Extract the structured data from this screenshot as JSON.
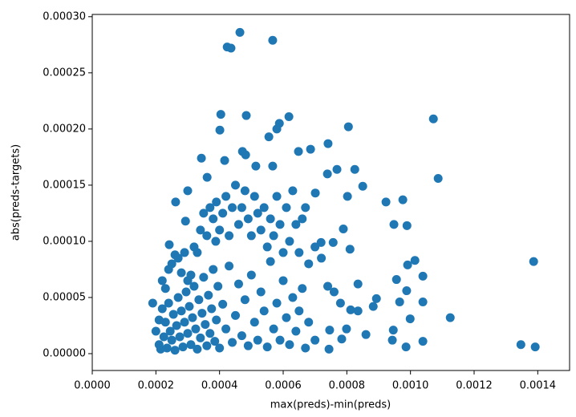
{
  "chart_data": {
    "type": "scatter",
    "color": "#1f77b4",
    "x_label": "max(preds)-min(preds)",
    "y_label": "abs(preds-targets)",
    "xlim": [
      0,
      0.0015
    ],
    "ylim": [
      -1.5e-05,
      0.000302
    ],
    "xticks": [
      {
        "value": 0,
        "label": "0.0000"
      },
      {
        "value": 0.0002,
        "label": "0.0002"
      },
      {
        "value": 0.0004,
        "label": "0.0004"
      },
      {
        "value": 0.0006,
        "label": "0.0006"
      },
      {
        "value": 0.0008,
        "label": "0.0008"
      },
      {
        "value": 0.001,
        "label": "0.0010"
      },
      {
        "value": 0.0012,
        "label": "0.0012"
      },
      {
        "value": 0.0014,
        "label": "0.0014"
      }
    ],
    "yticks": [
      {
        "value": 0,
        "label": "0.00000"
      },
      {
        "value": 5e-05,
        "label": "0.00005"
      },
      {
        "value": 0.0001,
        "label": "0.00010"
      },
      {
        "value": 0.00015,
        "label": "0.00015"
      },
      {
        "value": 0.0002,
        "label": "0.00020"
      },
      {
        "value": 0.00025,
        "label": "0.00025"
      },
      {
        "value": 0.0003,
        "label": "0.00030"
      }
    ],
    "x": [
      0.000464,
      0.000567,
      0.000424,
      0.000436,
      0.000404,
      0.000484,
      0.000618,
      0.001072,
      0.000805,
      0.000401,
      0.000588,
      0.00058,
      0.000555,
      0.000741,
      0.000686,
      0.000648,
      0.000472,
      0.000482,
      0.000343,
      0.000416,
      0.001087,
      0.000769,
      0.000825,
      0.000514,
      0.000567,
      0.00085,
      0.000923,
      0.000976,
      0.000948,
      0.000989,
      0.000802,
      0.000739,
      0.000701,
      0.000262,
      0.0003,
      0.000361,
      0.000293,
      0.000242,
      0.000388,
      0.001387,
      0.001014,
      0.000991,
      0.001039,
      0.000988,
      0.000956,
      0.000835,
      0.00081,
      0.000719,
      0.000757,
      0.000789,
      0.001125,
      0.001347,
      0.001392,
      0.001039,
      0.001039,
      0.000986,
      0.000943,
      0.000946,
      0.000966,
      0.000999,
      0.000893,
      0.000812,
      0.000835,
      0.000883,
      0.00086,
      0.000799,
      0.000784,
      0.000746,
      0.000744,
      0.00019,
      0.00021,
      0.00022,
      0.00023,
      0.00024,
      0.00025,
      0.00026,
      0.00027,
      0.00028,
      0.00029,
      0.0003,
      0.00031,
      0.00032,
      0.00033,
      0.00034,
      0.00035,
      0.00036,
      0.00037,
      0.00038,
      0.00039,
      0.0004,
      0.00041,
      0.00042,
      0.00043,
      0.00044,
      0.00045,
      0.00046,
      0.00047,
      0.00048,
      0.00049,
      0.0005,
      0.00051,
      0.00052,
      0.00053,
      0.00054,
      0.00055,
      0.00056,
      0.00057,
      0.00058,
      0.00059,
      0.0006,
      0.00061,
      0.00062,
      0.00063,
      0.00064,
      0.00065,
      0.00066,
      0.00067,
      0.00068,
      0.0007,
      0.00072,
      0.00074,
      0.00076,
      0.00078,
      0.0002,
      0.00021,
      0.000215,
      0.00022,
      0.000225,
      0.00023,
      0.000235,
      0.00024,
      0.000245,
      0.00025,
      0.000255,
      0.00026,
      0.000265,
      0.00027,
      0.000275,
      0.00028,
      0.000285,
      0.00029,
      0.000295,
      0.0003,
      0.000305,
      0.00031,
      0.000315,
      0.00032,
      0.000325,
      0.00033,
      0.000335,
      0.00034,
      0.000345,
      0.00035,
      0.000355,
      0.00036,
      0.000365,
      0.00037,
      0.000375,
      0.00038,
      0.000385,
      0.00039,
      0.000395,
      0.0004,
      0.00041,
      0.00042,
      0.00043,
      0.00044,
      0.00045,
      0.00046,
      0.00047,
      0.00048,
      0.00049,
      0.0005,
      0.00051,
      0.00052,
      0.00053,
      0.00054,
      0.00055,
      0.00056,
      0.00057,
      0.00058,
      0.00059,
      0.0006,
      0.00061,
      0.00062,
      0.00063,
      0.00064,
      0.00065,
      0.00066,
      0.00067,
      0.00068,
      0.0007
    ],
    "values": [
      0.000286,
      0.000279,
      0.000273,
      0.000272,
      0.000213,
      0.000212,
      0.000211,
      0.000209,
      0.000202,
      0.000199,
      0.000205,
      0.0002,
      0.000193,
      0.000187,
      0.000182,
      0.00018,
      0.00018,
      0.000177,
      0.000174,
      0.000172,
      0.000156,
      0.000164,
      0.000164,
      0.000167,
      0.000167,
      0.000149,
      0.000135,
      0.000137,
      0.000115,
      0.000114,
      0.00014,
      0.00016,
      0.000143,
      0.000135,
      0.000145,
      0.000157,
      0.000118,
      9.7e-05,
      0.0001,
      8.2e-05,
      8.3e-05,
      7.9e-05,
      6.9e-05,
      5.6e-05,
      6.6e-05,
      6.2e-05,
      9.3e-05,
      9.9e-05,
      9.9e-05,
      0.000111,
      3.2e-05,
      8e-06,
      6e-06,
      4.6e-05,
      1.1e-05,
      6e-06,
      1.2e-05,
      2.1e-05,
      4.6e-05,
      3.1e-05,
      4.9e-05,
      3.9e-05,
      3.8e-05,
      4.2e-05,
      1.7e-05,
      2.2e-05,
      1.3e-05,
      2.1e-05,
      4e-06,
      4.5e-05,
      3e-05,
      6.5e-05,
      5.8e-05,
      7.5e-05,
      8e-05,
      8.8e-05,
      8.5e-05,
      7.2e-05,
      9e-05,
      6.5e-05,
      7e-05,
      9.5e-05,
      9e-05,
      0.00011,
      0.000125,
      0.000105,
      0.00013,
      0.00012,
      0.000135,
      0.00011,
      0.000125,
      0.00014,
      0.000105,
      0.00013,
      0.00015,
      0.000115,
      0.00013,
      0.000145,
      0.00012,
      0.000105,
      0.00014,
      0.000125,
      0.00011,
      0.00013,
      9.5e-05,
      0.00012,
      0.000105,
      0.00014,
      0.000115,
      9e-05,
      0.00013,
      0.0001,
      0.000145,
      0.000115,
      9e-05,
      0.00012,
      0.00013,
      8e-05,
      9.5e-05,
      8.5e-05,
      6e-05,
      5.5e-05,
      4.5e-05,
      2e-05,
      8e-06,
      4e-06,
      4e-05,
      1.5e-05,
      2.8e-05,
      5e-06,
      4.5e-05,
      2e-05,
      1.2e-05,
      3.5e-05,
      3e-06,
      2.5e-05,
      5e-05,
      1.5e-05,
      3.8e-05,
      6e-06,
      2.8e-05,
      5.5e-05,
      1.8e-05,
      4.2e-05,
      8e-06,
      3.2e-05,
      6e-05,
      2.2e-05,
      4e-06,
      4.8e-05,
      1.4e-05,
      3.6e-05,
      6.8e-05,
      2.6e-05,
      7e-06,
      5.2e-05,
      1.8e-05,
      4e-05,
      7.5e-05,
      1.1e-05,
      3e-05,
      6e-05,
      5e-06,
      4.4e-05,
      2.2e-05,
      7.8e-05,
      1e-05,
      3.4e-05,
      6.2e-05,
      1.6e-05,
      4.8e-05,
      7e-06,
      7e-05,
      2.8e-05,
      1.2e-05,
      5.5e-05,
      3.8e-05,
      6e-06,
      8.2e-05,
      2.2e-05,
      4.5e-05,
      1.2e-05,
      6.5e-05,
      3.2e-05,
      8e-06,
      5e-05,
      2e-05,
      3.8e-05,
      5.8e-05,
      5e-06,
      2.8e-05,
      1.2e-05
    ]
  }
}
